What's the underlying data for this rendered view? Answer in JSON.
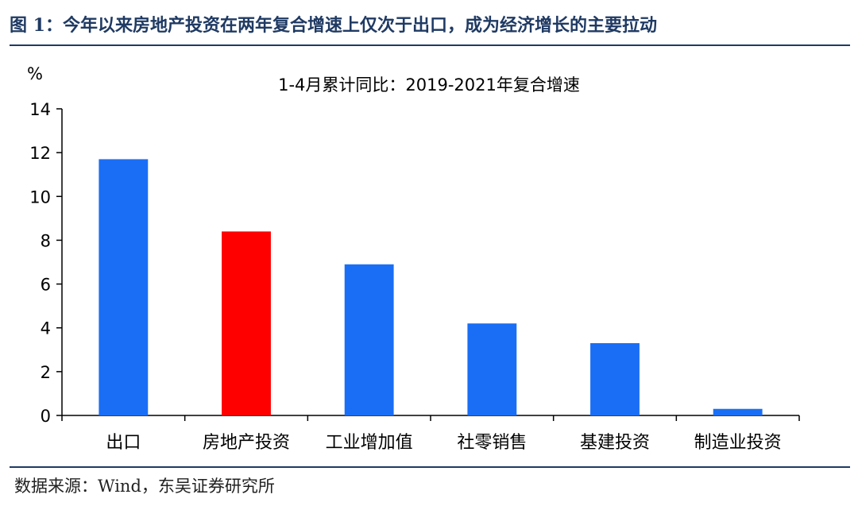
{
  "figure": {
    "title": "图 1：今年以来房地产投资在两年复合增速上仅次于出口，成为经济增长的主要拉动",
    "source": "数据来源：Wind，东吴证券研究所"
  },
  "chart_data": {
    "type": "bar",
    "title": "1-4月累计同比：2019-2021年复合增速",
    "ylabel": "%",
    "xlabel": "",
    "categories": [
      "出口",
      "房地产投资",
      "工业增加值",
      "社零销售",
      "基建投资",
      "制造业投资"
    ],
    "values": [
      11.7,
      8.4,
      6.9,
      4.2,
      3.3,
      0.3
    ],
    "ylim": [
      0,
      14
    ],
    "yticks": [
      "0",
      "2",
      "4",
      "6",
      "8",
      "10",
      "12",
      "14"
    ],
    "colors": [
      "#1a6ef5",
      "#ff0000",
      "#1a6ef5",
      "#1a6ef5",
      "#1a6ef5",
      "#1a6ef5"
    ],
    "grid": false,
    "legend": "none"
  }
}
